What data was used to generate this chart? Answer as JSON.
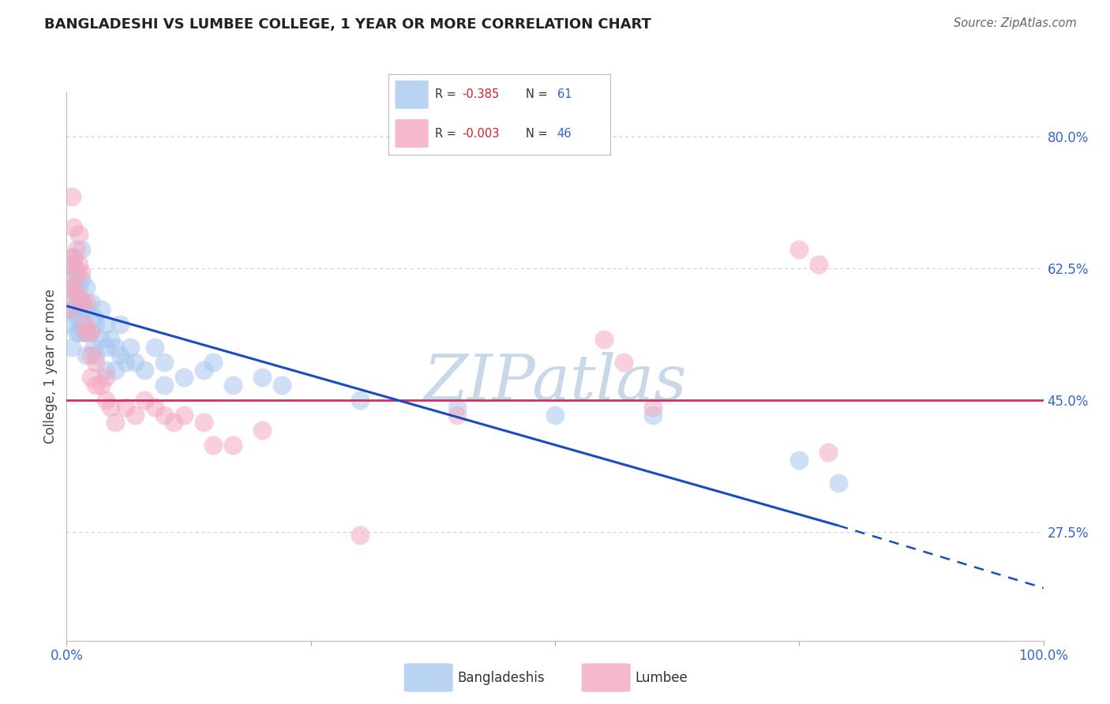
{
  "title": "BANGLADESHI VS LUMBEE COLLEGE, 1 YEAR OR MORE CORRELATION CHART",
  "source": "Source: ZipAtlas.com",
  "ylabel": "College, 1 year or more",
  "xlim": [
    0.0,
    1.0
  ],
  "ylim": [
    0.13,
    0.86
  ],
  "ytick_positions": [
    0.275,
    0.45,
    0.625,
    0.8
  ],
  "ytick_labels": [
    "27.5%",
    "45.0%",
    "62.5%",
    "80.0%"
  ],
  "blue_color": "#A8C8F0",
  "pink_color": "#F4A8C0",
  "trend_blue_color": "#1A4BBF",
  "trend_pink_color": "#D03060",
  "watermark_color": "#C8D8E8",
  "blue_trend_x0": 0.0,
  "blue_trend_y0": 0.575,
  "blue_trend_x1": 0.79,
  "blue_trend_y1": 0.283,
  "blue_trend_dash_x0": 0.79,
  "blue_trend_dash_y0": 0.283,
  "blue_trend_dash_x1": 1.0,
  "blue_trend_dash_y1": 0.2,
  "pink_trend_y": 0.45,
  "blue_x": [
    0.005,
    0.005,
    0.005,
    0.005,
    0.005,
    0.005,
    0.007,
    0.007,
    0.007,
    0.01,
    0.01,
    0.01,
    0.01,
    0.013,
    0.013,
    0.013,
    0.015,
    0.015,
    0.015,
    0.015,
    0.018,
    0.018,
    0.02,
    0.02,
    0.02,
    0.02,
    0.025,
    0.025,
    0.028,
    0.028,
    0.03,
    0.03,
    0.035,
    0.035,
    0.04,
    0.04,
    0.04,
    0.045,
    0.05,
    0.05,
    0.055,
    0.055,
    0.06,
    0.065,
    0.07,
    0.08,
    0.09,
    0.1,
    0.1,
    0.12,
    0.14,
    0.15,
    0.17,
    0.2,
    0.22,
    0.3,
    0.4,
    0.5,
    0.6,
    0.75,
    0.79
  ],
  "blue_y": [
    0.64,
    0.61,
    0.59,
    0.57,
    0.55,
    0.52,
    0.63,
    0.6,
    0.57,
    0.62,
    0.59,
    0.56,
    0.54,
    0.6,
    0.57,
    0.54,
    0.65,
    0.61,
    0.58,
    0.55,
    0.57,
    0.54,
    0.6,
    0.57,
    0.54,
    0.51,
    0.58,
    0.54,
    0.56,
    0.52,
    0.55,
    0.51,
    0.57,
    0.53,
    0.55,
    0.52,
    0.49,
    0.53,
    0.52,
    0.49,
    0.55,
    0.51,
    0.5,
    0.52,
    0.5,
    0.49,
    0.52,
    0.5,
    0.47,
    0.48,
    0.49,
    0.5,
    0.47,
    0.48,
    0.47,
    0.45,
    0.44,
    0.43,
    0.43,
    0.37,
    0.34
  ],
  "pink_x": [
    0.003,
    0.003,
    0.003,
    0.005,
    0.007,
    0.007,
    0.007,
    0.01,
    0.01,
    0.01,
    0.013,
    0.013,
    0.015,
    0.015,
    0.018,
    0.02,
    0.02,
    0.025,
    0.025,
    0.025,
    0.03,
    0.03,
    0.035,
    0.04,
    0.04,
    0.045,
    0.05,
    0.06,
    0.07,
    0.08,
    0.09,
    0.1,
    0.11,
    0.12,
    0.14,
    0.15,
    0.17,
    0.2,
    0.3,
    0.4,
    0.55,
    0.57,
    0.75,
    0.77,
    0.78,
    0.6
  ],
  "pink_y": [
    0.63,
    0.6,
    0.57,
    0.72,
    0.68,
    0.64,
    0.6,
    0.65,
    0.62,
    0.59,
    0.67,
    0.63,
    0.62,
    0.58,
    0.55,
    0.58,
    0.54,
    0.54,
    0.51,
    0.48,
    0.5,
    0.47,
    0.47,
    0.48,
    0.45,
    0.44,
    0.42,
    0.44,
    0.43,
    0.45,
    0.44,
    0.43,
    0.42,
    0.43,
    0.42,
    0.39,
    0.39,
    0.41,
    0.27,
    0.43,
    0.53,
    0.5,
    0.65,
    0.63,
    0.38,
    0.44
  ],
  "grid_color": "#C8C8C8",
  "background_color": "#FFFFFF"
}
